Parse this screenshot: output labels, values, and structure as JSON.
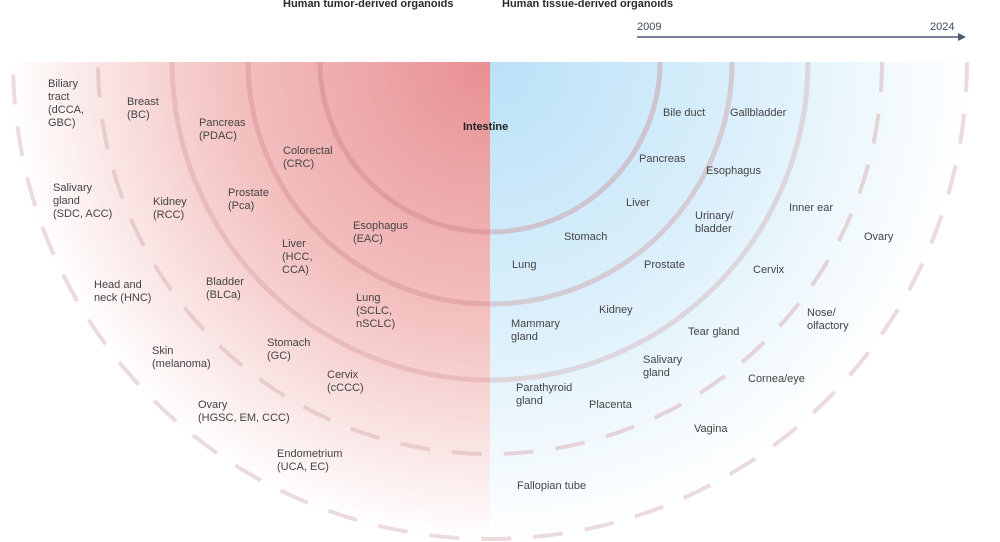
{
  "headers": {
    "tumor": "Human tumor-derived organoids",
    "tissue": "Human tissue-derived organoids"
  },
  "timeline": {
    "start": "2009",
    "end": "2024"
  },
  "colors": {
    "tumor": "#e88f92",
    "tissue": "#bfe3f7",
    "axis": "#4a5a70"
  },
  "center_label": "Intestine",
  "tumor_labels": [
    "Biliary\ntract\n(dCCA,\nGBC)",
    "Breast\n(BC)",
    "Pancreas\n(PDAC)",
    "Colorectal\n(CRC)",
    "Salivary\ngland\n(SDC, ACC)",
    "Kidney\n(RCC)",
    "Prostate\n(Pca)",
    "Esophagus\n(EAC)",
    "Liver\n(HCC,\nCCA)",
    "Head and\nneck (HNC)",
    "Bladder\n(BLCa)",
    "Lung\n(SCLC,\nnSCLC)",
    "Stomach\n(GC)",
    "Skin\n(melanoma)",
    "Cervix\n(cCCC)",
    "Ovary\n(HGSC, EM, CCC)",
    "Endometrium\n(UCA, EC)"
  ],
  "tissue_labels": [
    "Bile duct",
    "Gallbladder",
    "Pancreas",
    "Esophagus",
    "Liver",
    "Urinary/\nbladder",
    "Inner ear",
    "Stomach",
    "Ovary",
    "Lung",
    "Prostate",
    "Cervix",
    "Kidney",
    "Mammary\ngland",
    "Tear gland",
    "Nose/\nolfactory",
    "Salivary\ngland",
    "Cornea/eye",
    "Parathyroid\ngland",
    "Placenta",
    "Vagina",
    "Fallopian tube"
  ]
}
